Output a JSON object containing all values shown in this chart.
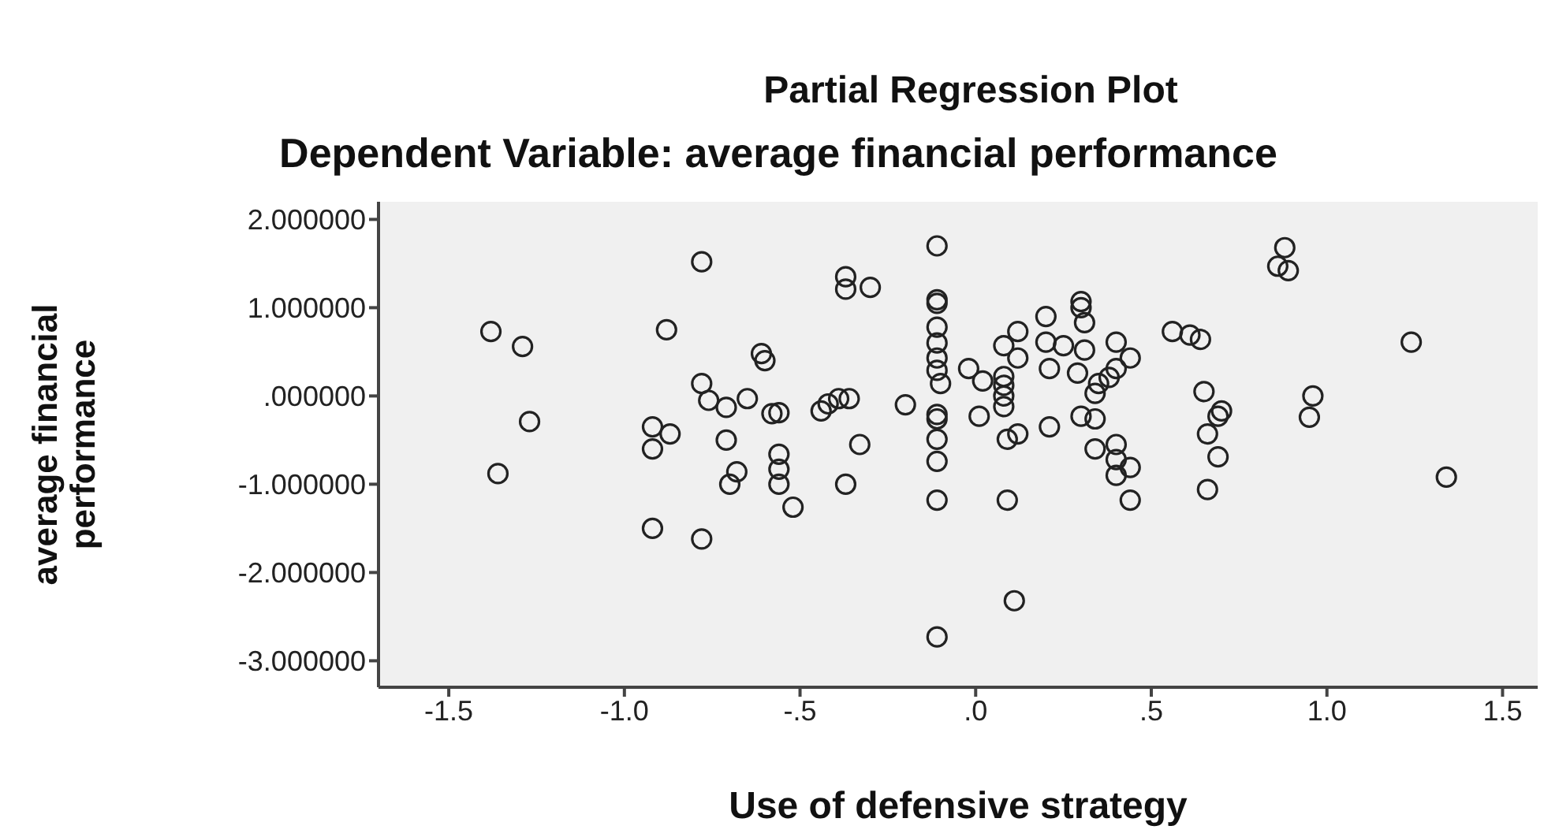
{
  "chart_data": {
    "type": "scatter",
    "title": "Partial Regression Plot",
    "subtitle": "Dependent Variable: average financial performance",
    "xlabel": "Use of defensive strategy",
    "ylabel": "average financial performance",
    "marker": "circle",
    "grid": false,
    "legend": false,
    "xlim": [
      -1.7,
      1.6
    ],
    "ylim": [
      -3.3,
      2.2
    ],
    "xticks": [
      {
        "value": -1.5,
        "label": "-1.5"
      },
      {
        "value": -1,
        "label": "-1.0"
      },
      {
        "value": -0.5,
        "label": "-.5"
      },
      {
        "value": 0,
        "label": ".0"
      },
      {
        "value": 0.5,
        "label": ".5"
      },
      {
        "value": 1,
        "label": "1.0"
      },
      {
        "value": 1.5,
        "label": "1.5"
      }
    ],
    "yticks": [
      {
        "value": 2,
        "label": "2.000000"
      },
      {
        "value": 1,
        "label": "1.000000"
      },
      {
        "value": 0,
        "label": ".000000"
      },
      {
        "value": -1,
        "label": "-1.000000"
      },
      {
        "value": -2,
        "label": "-2.000000"
      },
      {
        "value": -3,
        "label": "-3.000000"
      }
    ],
    "series": [
      {
        "color": "#222222",
        "x": [
          -1.38,
          -1.29,
          -1.27,
          -1.36,
          -0.78,
          -0.88,
          -0.92,
          -0.92,
          -0.87,
          -0.92,
          -0.78,
          -0.78,
          -0.76,
          -0.71,
          -0.65,
          -0.71,
          -0.68,
          -0.7,
          -0.61,
          -0.6,
          -0.58,
          -0.56,
          -0.56,
          -0.56,
          -0.56,
          -0.52,
          -0.37,
          -0.37,
          -0.3,
          -0.44,
          -0.42,
          -0.39,
          -0.36,
          -0.33,
          -0.37,
          -0.2,
          -0.11,
          -0.11,
          -0.11,
          -0.11,
          -0.11,
          -0.11,
          -0.11,
          -0.1,
          -0.11,
          -0.11,
          -0.11,
          -0.11,
          -0.11,
          -0.11,
          -0.02,
          0.02,
          0.01,
          0.08,
          0.12,
          0.12,
          0.08,
          0.08,
          0.08,
          0.08,
          0.09,
          0.12,
          0.09,
          0.11,
          0.2,
          0.2,
          0.21,
          0.25,
          0.21,
          0.3,
          0.3,
          0.31,
          0.31,
          0.29,
          0.34,
          0.35,
          0.3,
          0.34,
          0.4,
          0.4,
          0.44,
          0.38,
          0.34,
          0.4,
          0.4,
          0.44,
          0.4,
          0.44,
          0.88,
          0.86,
          0.89,
          0.56,
          0.61,
          0.64,
          0.65,
          0.7,
          0.69,
          0.66,
          0.69,
          0.66,
          0.96,
          0.95,
          1.24,
          1.34
        ],
        "values": [
          0.73,
          0.56,
          -0.29,
          -0.88,
          1.52,
          0.75,
          -0.35,
          -0.6,
          -0.43,
          -1.5,
          -1.62,
          0.14,
          -0.05,
          -0.13,
          -0.03,
          -0.5,
          -0.86,
          -1.0,
          0.48,
          0.4,
          -0.2,
          -0.19,
          -0.66,
          -0.83,
          -1.0,
          -1.26,
          1.35,
          1.21,
          1.23,
          -0.17,
          -0.09,
          -0.03,
          -0.03,
          -0.55,
          -1.0,
          -0.1,
          1.7,
          1.09,
          1.05,
          0.78,
          0.6,
          0.43,
          0.29,
          0.14,
          -0.21,
          -0.26,
          -0.49,
          -0.74,
          -1.18,
          -2.73,
          0.31,
          0.17,
          -0.23,
          0.57,
          0.73,
          0.43,
          0.22,
          0.12,
          0.0,
          -0.12,
          -0.49,
          -0.43,
          -1.18,
          -2.32,
          0.9,
          0.61,
          0.31,
          0.57,
          -0.35,
          1.07,
          1.0,
          0.83,
          0.52,
          0.26,
          0.03,
          0.14,
          -0.23,
          -0.26,
          0.61,
          0.31,
          0.43,
          0.21,
          -0.6,
          -0.55,
          -0.72,
          -0.81,
          -0.9,
          -1.18,
          1.68,
          1.47,
          1.42,
          0.73,
          0.69,
          0.64,
          0.05,
          -0.17,
          -0.23,
          -0.43,
          -0.69,
          -1.06,
          0.0,
          -0.24,
          0.61,
          -0.92
        ]
      }
    ]
  }
}
